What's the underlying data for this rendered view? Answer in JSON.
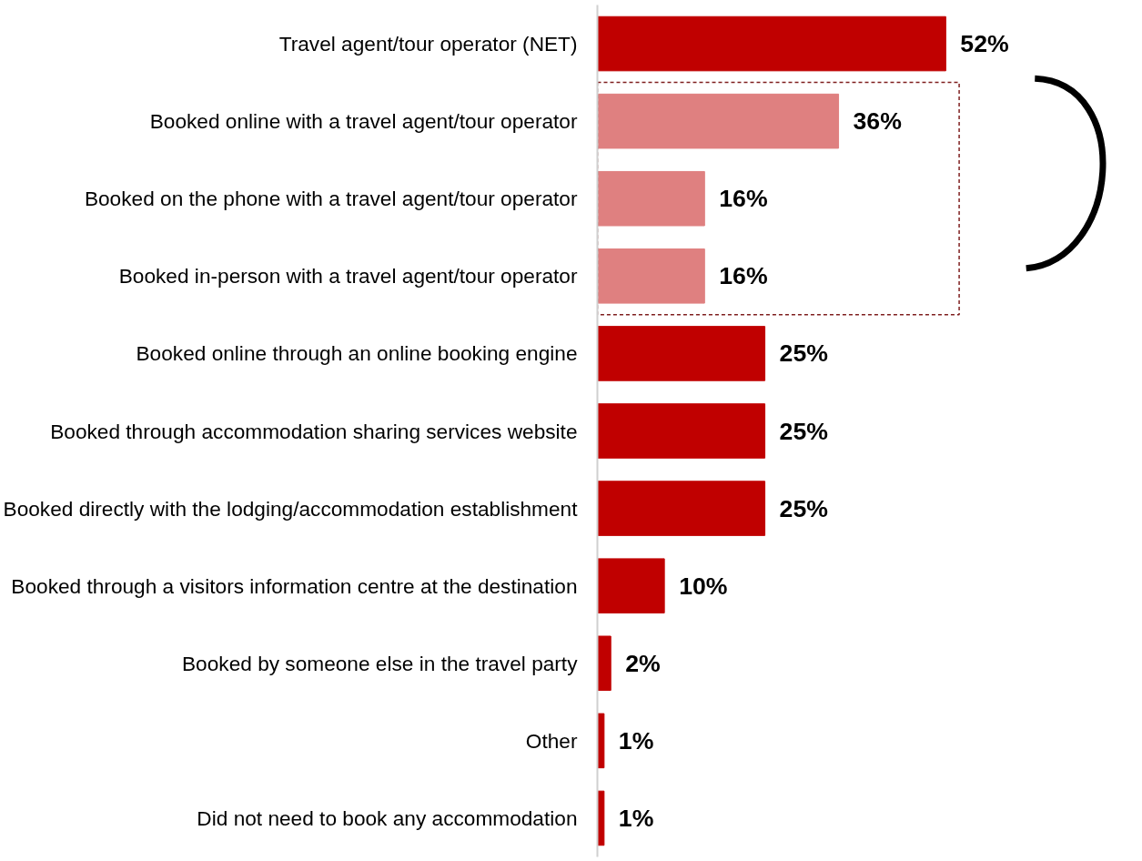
{
  "chart_data": {
    "type": "bar",
    "orientation": "horizontal",
    "relative": false,
    "categories": [
      "Travel agent/tour operator (NET)",
      "Booked online with a travel agent/tour operator",
      "Booked on the phone with a travel agent/tour operator",
      "Booked in-person with a travel agent/tour operator",
      "Booked online through an online booking engine",
      "Booked through accommodation sharing services website",
      "Booked directly with the lodging/accommodation establishment",
      "Booked through a visitors information centre at the destination",
      "Booked by someone else in the travel party",
      "Other",
      "Did not need to book any accommodation"
    ],
    "values": [
      52,
      36,
      16,
      16,
      25,
      25,
      25,
      10,
      2,
      1,
      1
    ],
    "value_labels": [
      "52%",
      "36%",
      "16%",
      "16%",
      "25%",
      "25%",
      "25%",
      "10%",
      "2%",
      "1%",
      "1%"
    ],
    "colors": [
      "#c00000",
      "#df8080",
      "#df8080",
      "#df8080",
      "#c00000",
      "#c00000",
      "#c00000",
      "#c00000",
      "#c00000",
      "#c00000",
      "#c00000"
    ],
    "grid": false
  }
}
